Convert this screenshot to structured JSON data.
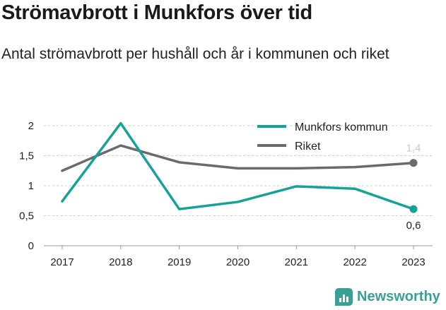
{
  "title": "Strömavbrott i Munkfors över tid",
  "subtitle": "Antal strömavbrott per hushåll och år i kommunen och riket",
  "brand": "Newsworthy",
  "colors": {
    "munkfors": "#14a396",
    "riket": "#6b6b6f",
    "brand": "#3a9f95",
    "grid": "#cccccc"
  },
  "chart_data": {
    "type": "line",
    "x": [
      2017,
      2018,
      2019,
      2020,
      2021,
      2022,
      2023
    ],
    "x_tick_labels": [
      "2017",
      "2018",
      "2019",
      "2020",
      "2021",
      "2022",
      "2023"
    ],
    "y_tick_values": [
      0,
      0.5,
      1,
      1.5,
      2
    ],
    "y_tick_labels": [
      "0",
      "0,5",
      "1",
      "1,5",
      "2"
    ],
    "ylim": [
      0,
      2.1
    ],
    "grid": true,
    "legend_position": "top-right",
    "series": [
      {
        "name": "Munkfors kommun",
        "color": "#14a396",
        "values": [
          0.74,
          2.04,
          0.61,
          0.73,
          0.99,
          0.95,
          0.61
        ],
        "end_label": "0,6"
      },
      {
        "name": "Riket",
        "color": "#6b6b6f",
        "values": [
          1.25,
          1.67,
          1.39,
          1.29,
          1.29,
          1.31,
          1.38
        ],
        "end_label": "1,4"
      }
    ]
  }
}
